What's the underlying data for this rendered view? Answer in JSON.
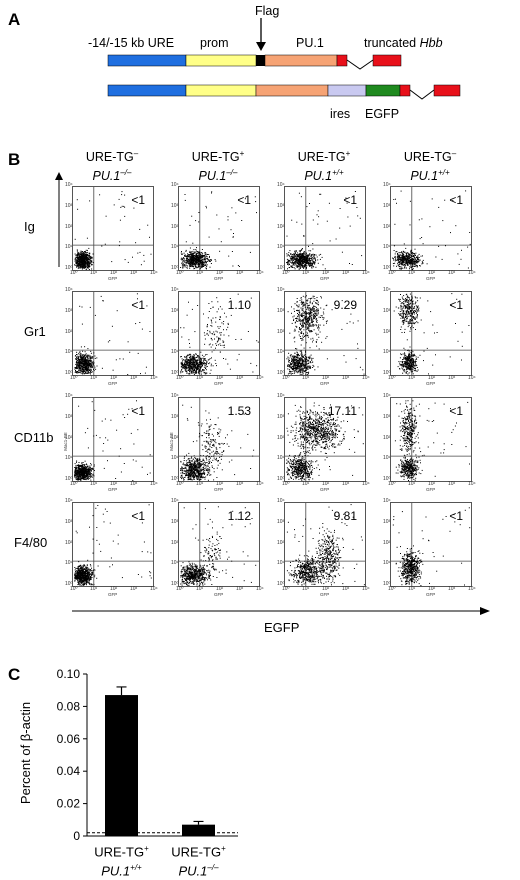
{
  "panels": {
    "a": "A",
    "b": "B",
    "c": "C"
  },
  "constructs": {
    "label_ure": "-14/-15 kb URE",
    "label_prom": "prom",
    "label_flag": "Flag",
    "label_pu1": "PU.1",
    "label_truncated": "truncated ",
    "label_hbb": "Hbb",
    "label_ires": "ires",
    "label_egfp": "EGFP",
    "colors": {
      "ure": "#1f6fe0",
      "prom": "#ffff88",
      "flag": "#000000",
      "pu1": "#f6a374",
      "hbb": "#e8101a",
      "ires": "#c9c9f0",
      "egfp": "#1f8a1f"
    }
  },
  "flow": {
    "columns": [
      {
        "line1": "URE-TG",
        "sup1": "–",
        "line2": "PU.1",
        "sup2": "–/–"
      },
      {
        "line1": "URE-TG",
        "sup1": "+",
        "line2": "PU.1",
        "sup2": "–/–"
      },
      {
        "line1": "URE-TG",
        "sup1": "+",
        "line2": "PU.1",
        "sup2": "+/+"
      },
      {
        "line1": "URE-TG",
        "sup1": "–",
        "line2": "PU.1",
        "sup2": "+/+"
      }
    ],
    "rows": [
      {
        "label": "Ig",
        "values": [
          "<1",
          "<1",
          "<1",
          "<1"
        ]
      },
      {
        "label": "Gr1",
        "values": [
          "<1",
          "1.10",
          "9.29",
          "<1"
        ]
      },
      {
        "label": "CD11b",
        "values": [
          "<1",
          "1.53",
          "17.11",
          "<1"
        ]
      },
      {
        "label": "F4/80",
        "values": [
          "<1",
          "1.12",
          "9.81",
          "<1"
        ]
      }
    ],
    "x_axis_label": "EGFP",
    "plot_x_label": "GFP",
    "plot_y_label_cd11b": "Mac1-PE",
    "ticks": [
      "10⁰",
      "10¹",
      "10²",
      "10³",
      "10⁴"
    ]
  },
  "chart_data": {
    "type": "bar",
    "categories": [
      "URE-TG+ PU.1+/+",
      "URE-TG+ PU.1–/–"
    ],
    "values": [
      0.087,
      0.007
    ],
    "errors": [
      0.005,
      0.002
    ],
    "ylabel": "Percent of β-actin",
    "ylim": [
      0,
      0.1
    ],
    "yticks": [
      "0",
      "0.02",
      "0.04",
      "0.06",
      "0.08",
      "0.10"
    ],
    "baseline_dashed": 0.002,
    "bar_color": "#000000",
    "category_labels": [
      {
        "line1": "URE-TG",
        "sup1": "+",
        "line2": "PU.1",
        "sup2": "+/+"
      },
      {
        "line1": "URE-TG",
        "sup1": "+",
        "line2": "PU.1",
        "sup2": "–/–"
      }
    ]
  }
}
